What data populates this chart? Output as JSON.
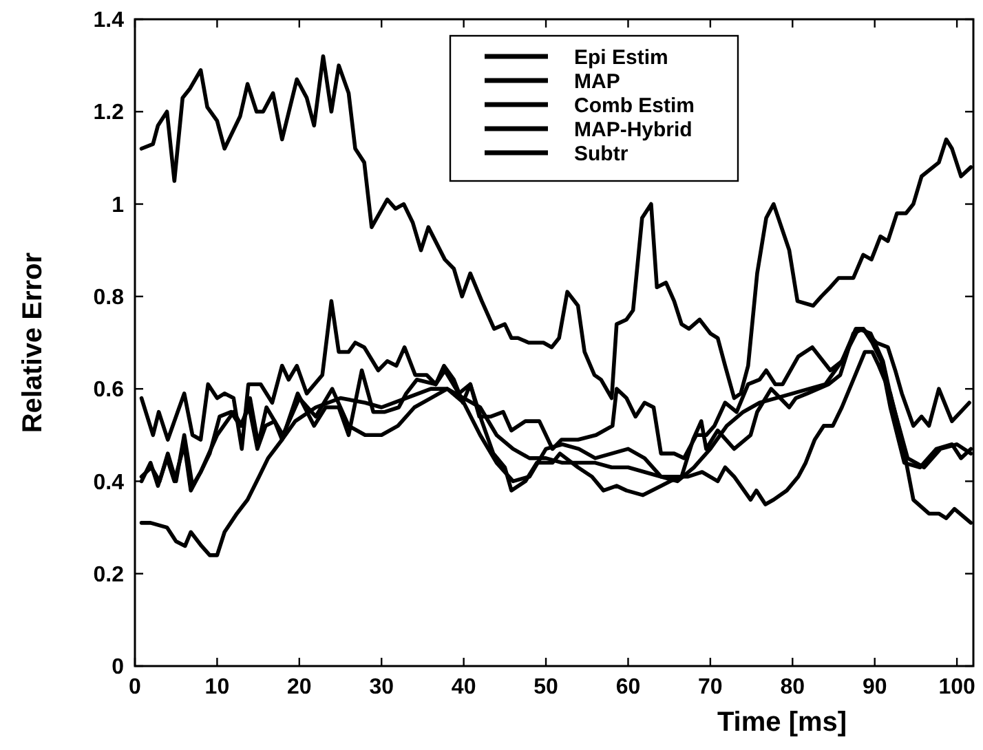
{
  "chart_data": {
    "type": "line",
    "xlabel": "Time [ms]",
    "ylabel": "Relative Error",
    "xlim": [
      0,
      102
    ],
    "xticks": [
      0,
      10,
      20,
      30,
      40,
      50,
      60,
      70,
      80,
      90,
      100
    ],
    "ylim": [
      0,
      1.4
    ],
    "yticks": [
      0,
      0.2,
      0.4,
      0.6,
      0.8,
      1,
      1.2,
      1.4
    ],
    "legend": "top right",
    "grid": false,
    "line_style": "solid",
    "marker": "none",
    "series": [
      {
        "name": "Epi Estim",
        "color": "#000000",
        "x": [
          0.8,
          1.9,
          2.8,
          3.9,
          4.8,
          6.0,
          6.8,
          8.0,
          9.1,
          10.3,
          11.7,
          12.8,
          13.9,
          14.9,
          15.9,
          17.0,
          17.9,
          19.8,
          21.8,
          23.2,
          24.8,
          26.0,
          27.6,
          29.0,
          30.4,
          32.1,
          33.0,
          34.3,
          36.6,
          37.7,
          39.4,
          40.8,
          42.2,
          43.6,
          45.0,
          45.8,
          47.5,
          48.9,
          50.8,
          51.7,
          53.9,
          55.6,
          57.0,
          58.6,
          59.8,
          61.8,
          64.0,
          65.1,
          66.5,
          67.9,
          68.9,
          69.5,
          70.9,
          72.9,
          74.9,
          75.7,
          77.4,
          78.5,
          79.6,
          80.4,
          81.8,
          84.4,
          85.8,
          87.4,
          88.6,
          89.7,
          90.8,
          91.9,
          93.6,
          95.5,
          97.5,
          99.4,
          100.5,
          101.7
        ],
        "values": [
          0.4,
          0.44,
          0.39,
          0.45,
          0.4,
          0.48,
          0.38,
          0.42,
          0.46,
          0.54,
          0.55,
          0.52,
          0.56,
          0.47,
          0.52,
          0.53,
          0.49,
          0.59,
          0.52,
          0.56,
          0.56,
          0.5,
          0.64,
          0.55,
          0.55,
          0.56,
          0.59,
          0.62,
          0.61,
          0.64,
          0.59,
          0.61,
          0.53,
          0.46,
          0.43,
          0.38,
          0.4,
          0.44,
          0.44,
          0.46,
          0.43,
          0.41,
          0.38,
          0.39,
          0.38,
          0.37,
          0.39,
          0.4,
          0.41,
          0.49,
          0.53,
          0.47,
          0.51,
          0.47,
          0.5,
          0.55,
          0.6,
          0.58,
          0.56,
          0.58,
          0.59,
          0.61,
          0.63,
          0.72,
          0.73,
          0.7,
          0.66,
          0.56,
          0.44,
          0.43,
          0.47,
          0.48,
          0.45,
          0.47
        ]
      },
      {
        "name": "MAP",
        "color": "#000000",
        "x": [
          0.8,
          2.2,
          2.8,
          3.9,
          4.8,
          5.8,
          6.7,
          8.0,
          8.8,
          10.0,
          10.9,
          12.8,
          13.7,
          14.8,
          15.6,
          16.8,
          17.9,
          19.7,
          20.9,
          21.8,
          22.9,
          23.9,
          24.8,
          26.0,
          26.8,
          27.9,
          28.8,
          30.7,
          31.7,
          32.7,
          33.8,
          34.8,
          35.7,
          37.7,
          38.8,
          39.8,
          40.8,
          42.2,
          43.7,
          45.0,
          45.8,
          46.6,
          47.9,
          49.7,
          50.7,
          51.6,
          52.6,
          53.9,
          54.7,
          55.9,
          56.7,
          58.0,
          58.6,
          59.8,
          60.6,
          61.7,
          62.8,
          63.5,
          64.6,
          65.6,
          66.5,
          67.4,
          68.7,
          70.0,
          70.9,
          71.8,
          72.9,
          73.7,
          74.6,
          75.7,
          76.8,
          77.7,
          79.6,
          80.6,
          82.5,
          83.5,
          84.6,
          85.6,
          87.4,
          88.6,
          89.6,
          90.7,
          91.6,
          92.7,
          93.8,
          94.7,
          95.7,
          97.8,
          98.7,
          99.4,
          100.5,
          101.7
        ],
        "values": [
          1.12,
          1.13,
          1.17,
          1.2,
          1.05,
          1.23,
          1.25,
          1.29,
          1.21,
          1.18,
          1.12,
          1.19,
          1.26,
          1.2,
          1.2,
          1.24,
          1.14,
          1.27,
          1.23,
          1.17,
          1.32,
          1.2,
          1.3,
          1.24,
          1.12,
          1.09,
          0.95,
          1.01,
          0.99,
          1.0,
          0.96,
          0.9,
          0.95,
          0.88,
          0.86,
          0.8,
          0.85,
          0.79,
          0.73,
          0.74,
          0.71,
          0.71,
          0.7,
          0.7,
          0.69,
          0.71,
          0.81,
          0.78,
          0.68,
          0.63,
          0.62,
          0.58,
          0.74,
          0.75,
          0.77,
          0.97,
          1.0,
          0.82,
          0.83,
          0.79,
          0.74,
          0.73,
          0.75,
          0.72,
          0.71,
          0.65,
          0.58,
          0.59,
          0.65,
          0.85,
          0.97,
          1.0,
          0.9,
          0.79,
          0.78,
          0.8,
          0.82,
          0.84,
          0.84,
          0.89,
          0.88,
          0.93,
          0.92,
          0.98,
          0.98,
          1.0,
          1.06,
          1.09,
          1.14,
          1.12,
          1.06,
          1.08
        ]
      },
      {
        "name": "Comb Estim",
        "color": "#000000",
        "x": [
          0.8,
          2,
          3,
          4,
          5,
          6,
          7,
          8,
          10,
          12,
          13,
          14,
          15,
          16,
          18,
          20,
          22,
          24,
          26,
          28,
          30,
          32,
          34,
          36,
          38,
          40,
          42,
          44,
          46,
          48,
          50,
          52,
          54,
          56,
          58,
          60,
          62,
          64,
          66,
          68,
          70,
          72,
          74,
          76,
          78,
          80,
          82,
          84,
          86,
          88,
          89.5,
          91,
          92,
          94,
          96,
          98,
          100,
          101.7
        ],
        "values": [
          0.41,
          0.43,
          0.4,
          0.46,
          0.4,
          0.5,
          0.39,
          0.42,
          0.5,
          0.55,
          0.52,
          0.58,
          0.48,
          0.56,
          0.5,
          0.58,
          0.54,
          0.6,
          0.52,
          0.5,
          0.5,
          0.52,
          0.56,
          0.58,
          0.6,
          0.57,
          0.5,
          0.44,
          0.4,
          0.41,
          0.47,
          0.48,
          0.47,
          0.45,
          0.46,
          0.47,
          0.45,
          0.41,
          0.4,
          0.43,
          0.47,
          0.52,
          0.55,
          0.57,
          0.58,
          0.59,
          0.6,
          0.61,
          0.66,
          0.73,
          0.72,
          0.66,
          0.58,
          0.45,
          0.43,
          0.47,
          0.48,
          0.46
        ]
      },
      {
        "name": "MAP-Hybrid",
        "color": "#000000",
        "x": [
          0.8,
          2.2,
          2.9,
          4.0,
          6.0,
          7.0,
          8.0,
          8.9,
          10.0,
          10.9,
          12.0,
          13.0,
          13.8,
          15.3,
          16.7,
          17.9,
          18.7,
          19.7,
          20.9,
          22.8,
          23.9,
          24.8,
          26.0,
          26.8,
          27.9,
          29.6,
          30.7,
          31.8,
          32.8,
          34.1,
          35.5,
          36.6,
          37.6,
          38.8,
          39.9,
          40.8,
          41.9,
          43.3,
          44.8,
          45.8,
          47.5,
          49.2,
          50.8,
          51.9,
          53.9,
          56.1,
          58.1,
          58.6,
          59.8,
          60.9,
          62.0,
          63.1,
          64.0,
          65.6,
          66.8,
          68.3,
          69.5,
          70.5,
          71.8,
          73.2,
          74.6,
          76.0,
          76.8,
          77.9,
          78.8,
          80.7,
          82.4,
          84.6,
          86.0,
          87.7,
          88.6,
          90.2,
          91.6,
          92.5,
          93.3,
          94.7,
          95.7,
          96.6,
          97.8,
          99.4,
          101.5
        ],
        "values": [
          0.58,
          0.5,
          0.55,
          0.49,
          0.59,
          0.5,
          0.49,
          0.61,
          0.58,
          0.59,
          0.58,
          0.47,
          0.61,
          0.61,
          0.57,
          0.65,
          0.62,
          0.65,
          0.59,
          0.63,
          0.79,
          0.68,
          0.68,
          0.7,
          0.69,
          0.64,
          0.66,
          0.65,
          0.69,
          0.63,
          0.63,
          0.61,
          0.65,
          0.62,
          0.57,
          0.61,
          0.54,
          0.54,
          0.55,
          0.51,
          0.53,
          0.53,
          0.47,
          0.49,
          0.49,
          0.5,
          0.52,
          0.6,
          0.58,
          0.54,
          0.57,
          0.56,
          0.46,
          0.46,
          0.45,
          0.5,
          0.5,
          0.52,
          0.57,
          0.55,
          0.61,
          0.62,
          0.64,
          0.61,
          0.61,
          0.67,
          0.69,
          0.64,
          0.66,
          0.73,
          0.73,
          0.7,
          0.69,
          0.64,
          0.59,
          0.52,
          0.54,
          0.52,
          0.6,
          0.53,
          0.57
        ]
      },
      {
        "name": "Subtr",
        "color": "#000000",
        "x": [
          0.8,
          1.9,
          3.9,
          5.0,
          6.1,
          6.8,
          8.1,
          9.1,
          10.0,
          10.9,
          12.4,
          13.7,
          15.1,
          16.2,
          17.9,
          19.5,
          22,
          25,
          28,
          30,
          33,
          36,
          38,
          40,
          42,
          44,
          46,
          48,
          50,
          52,
          54,
          56,
          58,
          60,
          62,
          64,
          66,
          67.3,
          69.0,
          70.9,
          71.8,
          72.9,
          74.9,
          75.6,
          76.7,
          77.7,
          79.3,
          80.7,
          81.6,
          82.7,
          83.8,
          84.9,
          86.0,
          87.4,
          88.8,
          89.7,
          90.5,
          91.9,
          93.3,
          94.7,
          96.6,
          97.8,
          98.7,
          99.7,
          101.7
        ],
        "values": [
          0.31,
          0.31,
          0.3,
          0.27,
          0.26,
          0.29,
          0.26,
          0.24,
          0.24,
          0.29,
          0.33,
          0.36,
          0.41,
          0.45,
          0.49,
          0.53,
          0.56,
          0.58,
          0.57,
          0.56,
          0.58,
          0.6,
          0.6,
          0.58,
          0.56,
          0.5,
          0.47,
          0.45,
          0.45,
          0.44,
          0.44,
          0.44,
          0.43,
          0.43,
          0.42,
          0.41,
          0.41,
          0.41,
          0.42,
          0.4,
          0.43,
          0.41,
          0.36,
          0.38,
          0.35,
          0.36,
          0.38,
          0.41,
          0.44,
          0.49,
          0.52,
          0.52,
          0.56,
          0.62,
          0.68,
          0.68,
          0.65,
          0.59,
          0.49,
          0.36,
          0.33,
          0.33,
          0.32,
          0.34,
          0.31
        ]
      }
    ]
  }
}
